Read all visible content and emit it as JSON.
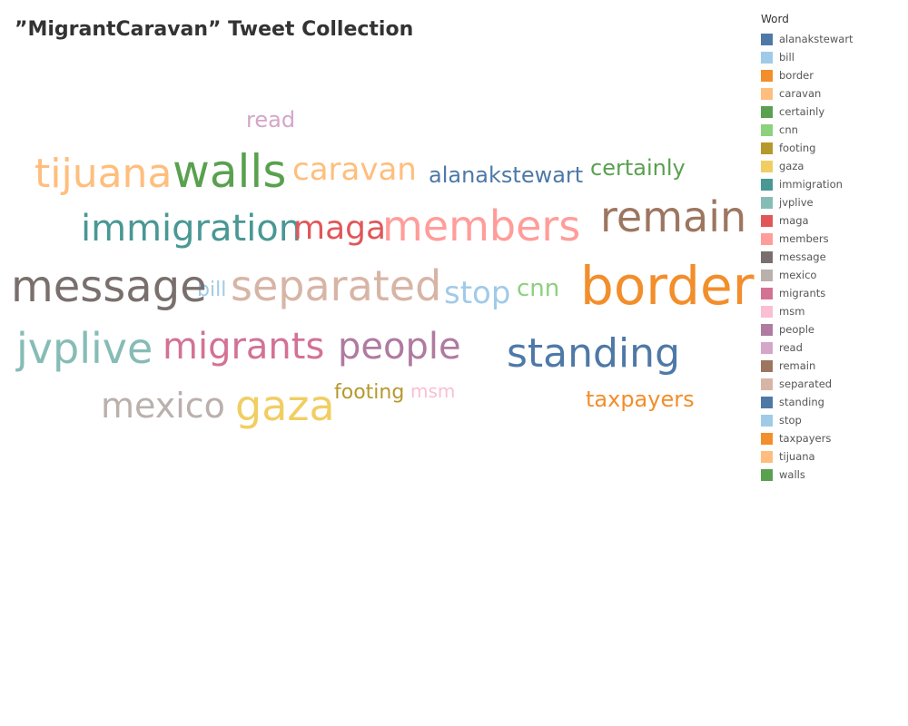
{
  "page": {
    "title": "”MigrantCaravan” Tweet Collection"
  },
  "chart_data": {
    "type": "wordcloud",
    "title": "”MigrantCaravan” Tweet Collection",
    "legend_title": "Word",
    "legend_position": "right",
    "words": [
      {
        "word": "alanakstewart",
        "color": "#4e79a7",
        "size": 2
      },
      {
        "word": "bill",
        "color": "#a0cbe8",
        "size": 1
      },
      {
        "word": "border",
        "color": "#f28e2b",
        "size": 9
      },
      {
        "word": "caravan",
        "color": "#ffbe7d",
        "size": 4
      },
      {
        "word": "certainly",
        "color": "#59a14f",
        "size": 2
      },
      {
        "word": "cnn",
        "color": "#8cd17d",
        "size": 2
      },
      {
        "word": "footing",
        "color": "#b6992d",
        "size": 2
      },
      {
        "word": "gaza",
        "color": "#f1ce63",
        "size": 6
      },
      {
        "word": "immigration",
        "color": "#499894",
        "size": 5
      },
      {
        "word": "jvplive",
        "color": "#86bcb6",
        "size": 6
      },
      {
        "word": "maga",
        "color": "#e15759",
        "size": 4
      },
      {
        "word": "members",
        "color": "#ff9d9a",
        "size": 6
      },
      {
        "word": "message",
        "color": "#79706e",
        "size": 7
      },
      {
        "word": "mexico",
        "color": "#bab0ac",
        "size": 5
      },
      {
        "word": "migrants",
        "color": "#d37295",
        "size": 6
      },
      {
        "word": "msm",
        "color": "#fabfd2",
        "size": 1
      },
      {
        "word": "people",
        "color": "#b07aa1",
        "size": 5
      },
      {
        "word": "read",
        "color": "#d4a6c8",
        "size": 2
      },
      {
        "word": "remain",
        "color": "#9d7660",
        "size": 6
      },
      {
        "word": "separated",
        "color": "#d7b5a6",
        "size": 7
      },
      {
        "word": "standing",
        "color": "#4e79a7",
        "size": 7
      },
      {
        "word": "stop",
        "color": "#a0cbe8",
        "size": 4
      },
      {
        "word": "taxpayers",
        "color": "#f28e2b",
        "size": 3
      },
      {
        "word": "tijuana",
        "color": "#ffbe7d",
        "size": 6
      },
      {
        "word": "walls",
        "color": "#59a14f",
        "size": 7
      }
    ]
  }
}
